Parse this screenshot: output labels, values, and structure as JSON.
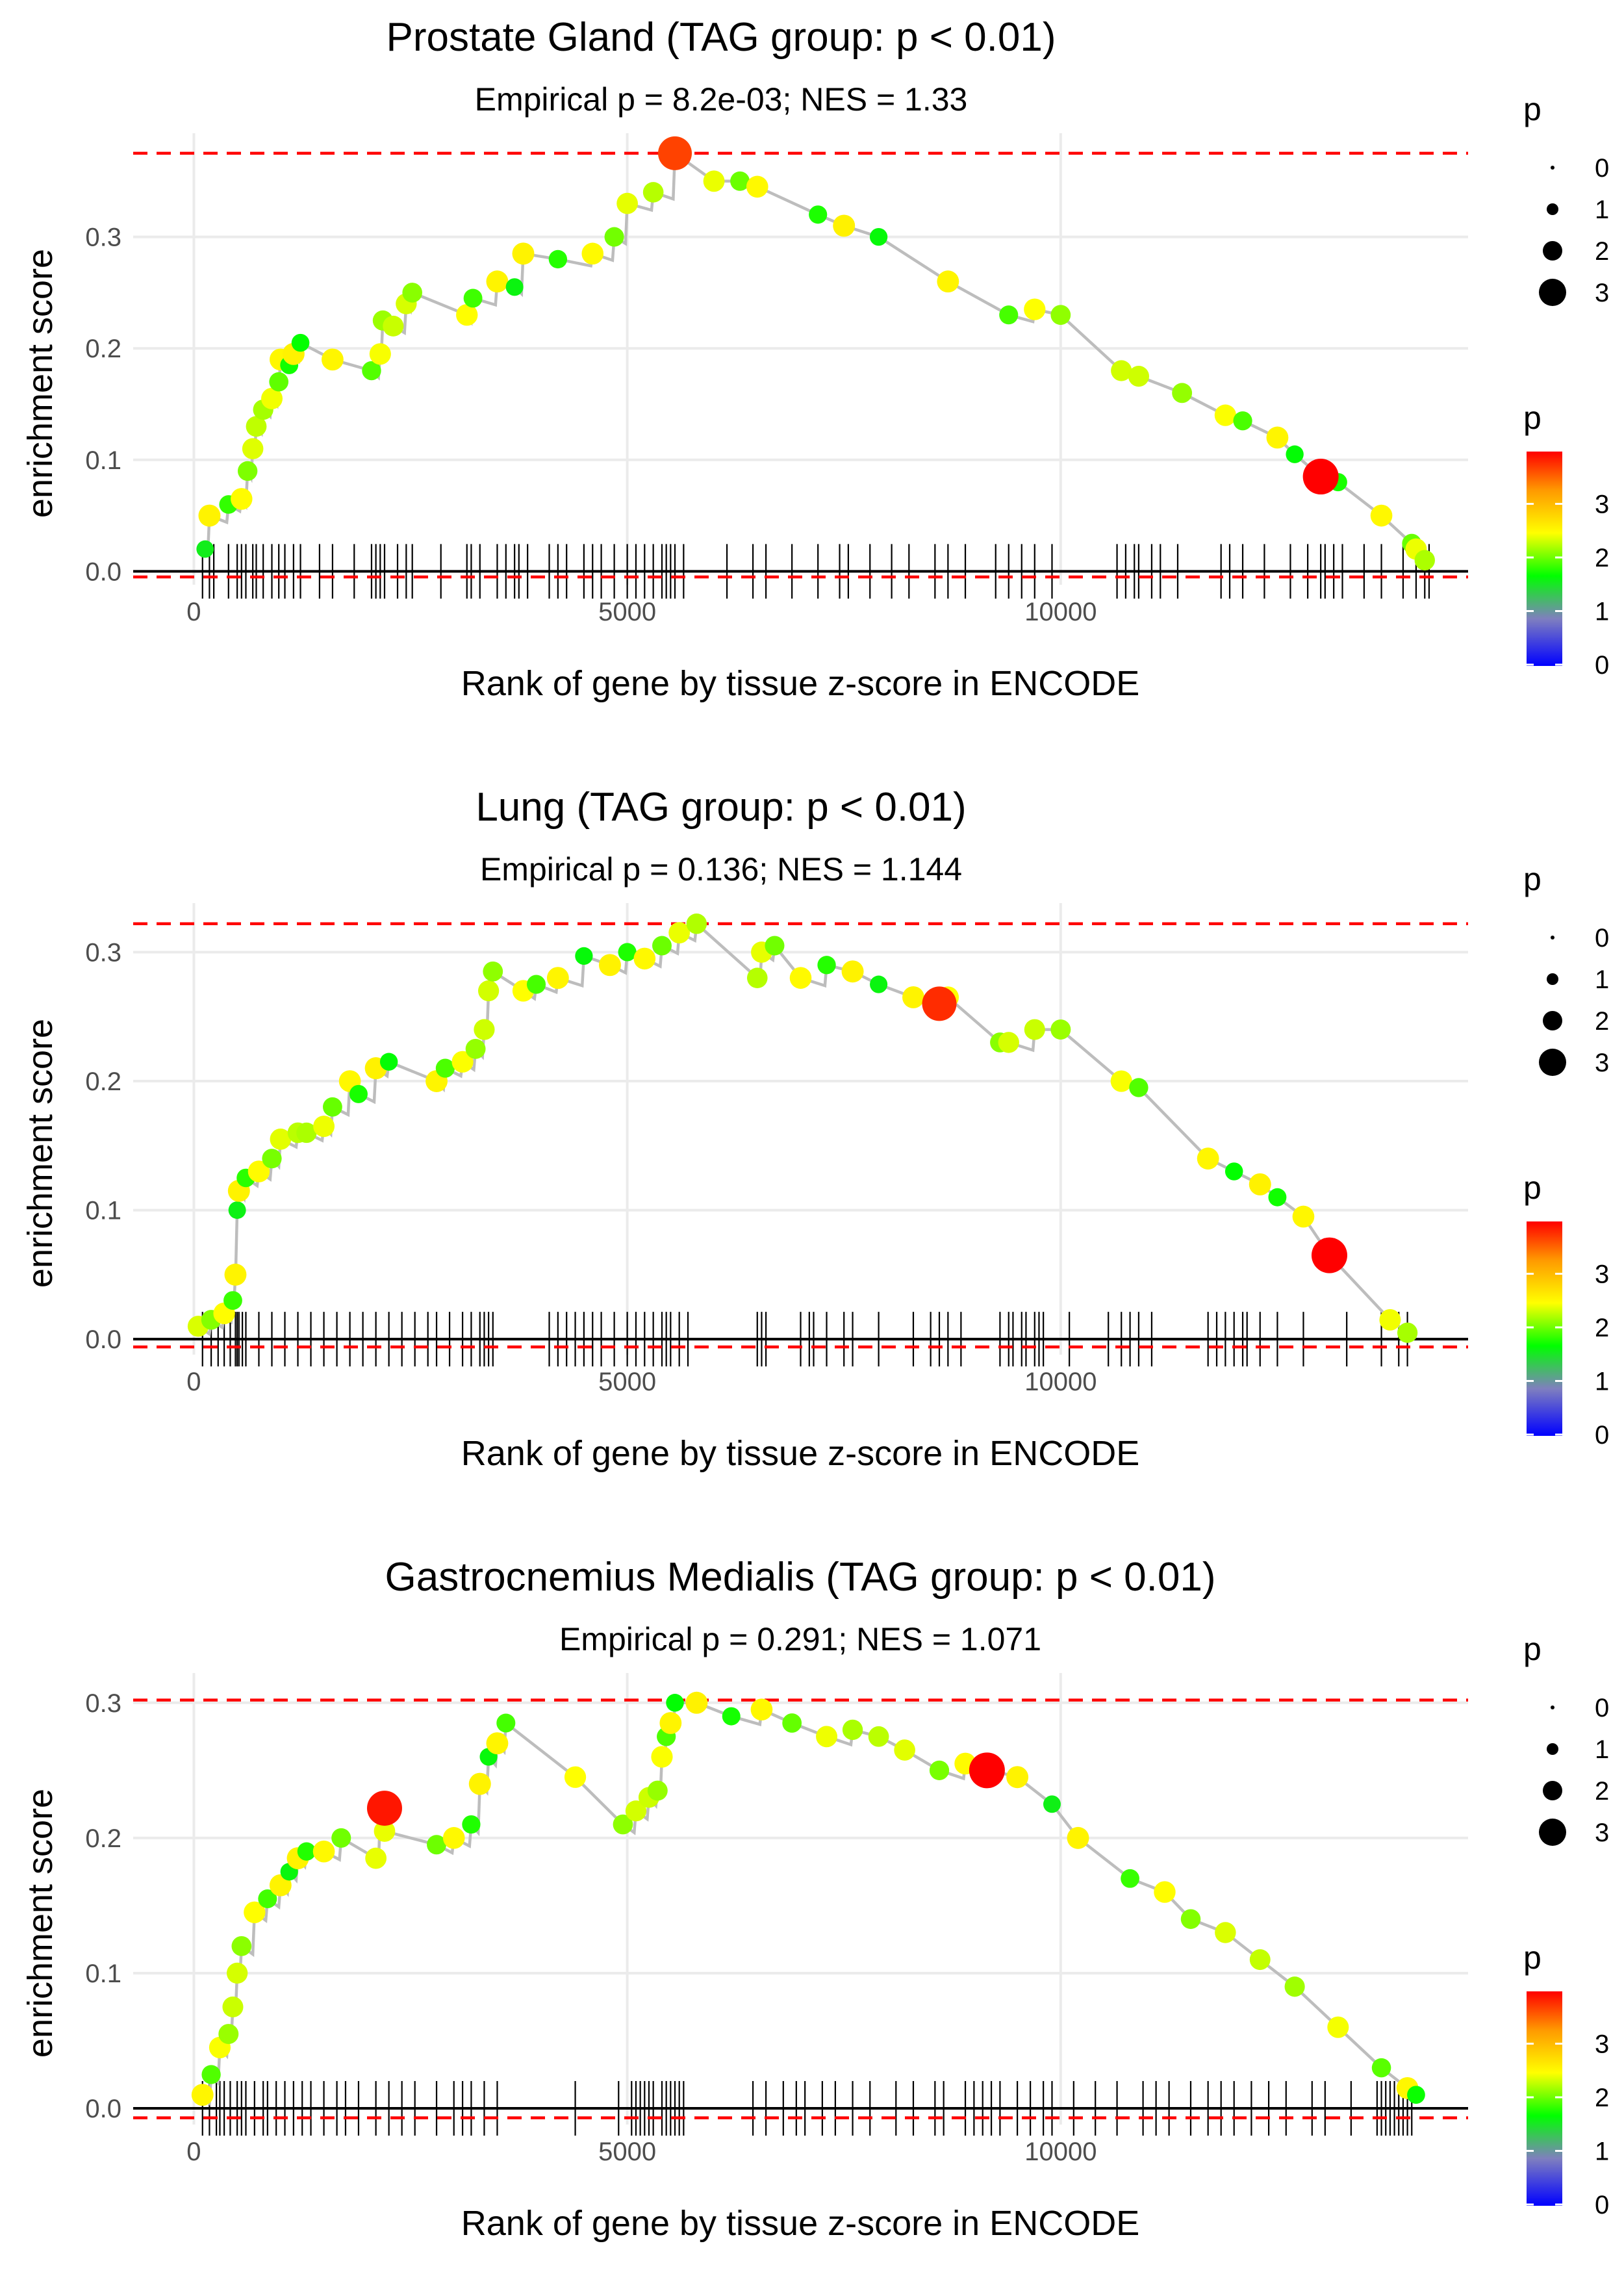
{
  "legend": {
    "size_title": "p",
    "size_levels": [
      "0",
      "1",
      "2",
      "3"
    ],
    "color_title": "p",
    "color_ticks": [
      "0",
      "1",
      "2",
      "3"
    ],
    "gradient_colors": [
      "#0000ff",
      "#7f7fbf",
      "#00ff00",
      "#ffff00",
      "#ff9900",
      "#ff0000"
    ]
  },
  "colors": {
    "line": "#bdbdbd",
    "dashed": "#ff0000",
    "baseline": "#000000",
    "grid": "#ebebeb",
    "tick_mark": "#000000"
  },
  "chart_data": [
    {
      "type": "line",
      "title": "Prostate Gland (TAG group: p < 0.01)",
      "subtitle": "Empirical p = 8.2e-03; NES = 1.33",
      "xlabel": "Rank of gene by tissue z-score in ENCODE",
      "ylabel": "enrichment score",
      "xlim": [
        -700,
        14700
      ],
      "ylim": [
        -0.012,
        0.393
      ],
      "x_ticks": [
        0,
        5000,
        10000
      ],
      "x_tick_labels": [
        "0",
        "5000",
        "10000"
      ],
      "y_ticks": [
        0,
        0.1,
        0.2,
        0.3
      ],
      "y_tick_labels": [
        "0.0",
        "0.1",
        "0.2",
        "0.3"
      ],
      "max_es": 0.375,
      "min_es": -0.005,
      "points": [
        [
          130,
          0.02
        ],
        [
          180,
          0.05
        ],
        [
          400,
          0.06
        ],
        [
          550,
          0.065
        ],
        [
          620,
          0.09
        ],
        [
          680,
          0.11
        ],
        [
          720,
          0.13
        ],
        [
          800,
          0.145
        ],
        [
          900,
          0.155
        ],
        [
          980,
          0.17
        ],
        [
          1000,
          0.19
        ],
        [
          1100,
          0.185
        ],
        [
          1150,
          0.195
        ],
        [
          1230,
          0.205
        ],
        [
          1600,
          0.19
        ],
        [
          2050,
          0.18
        ],
        [
          2150,
          0.195
        ],
        [
          2180,
          0.225
        ],
        [
          2300,
          0.22
        ],
        [
          2450,
          0.24
        ],
        [
          2520,
          0.25
        ],
        [
          3150,
          0.23
        ],
        [
          3220,
          0.245
        ],
        [
          3500,
          0.26
        ],
        [
          3700,
          0.255
        ],
        [
          3800,
          0.285
        ],
        [
          4200,
          0.28
        ],
        [
          4600,
          0.285
        ],
        [
          4850,
          0.3
        ],
        [
          5000,
          0.33
        ],
        [
          5300,
          0.34
        ],
        [
          5550,
          0.375
        ],
        [
          6000,
          0.35
        ],
        [
          6300,
          0.35
        ],
        [
          6500,
          0.345
        ],
        [
          7200,
          0.32
        ],
        [
          7500,
          0.31
        ],
        [
          7900,
          0.3
        ],
        [
          8700,
          0.26
        ],
        [
          9400,
          0.23
        ],
        [
          9700,
          0.235
        ],
        [
          10000,
          0.23
        ],
        [
          10700,
          0.18
        ],
        [
          10900,
          0.175
        ],
        [
          11400,
          0.16
        ],
        [
          11900,
          0.14
        ],
        [
          12100,
          0.135
        ],
        [
          12500,
          0.12
        ],
        [
          12700,
          0.105
        ],
        [
          13000,
          0.085
        ],
        [
          13200,
          0.08
        ],
        [
          13700,
          0.05
        ],
        [
          14050,
          0.025
        ],
        [
          14100,
          0.02
        ],
        [
          14200,
          0.01
        ]
      ],
      "highlights": [
        {
          "x": 5550,
          "y": 0.375,
          "p": 3.6
        },
        {
          "x": 13000,
          "y": 0.085,
          "p": 3.9
        }
      ],
      "gene_ranks": [
        100,
        180,
        230,
        400,
        500,
        550,
        600,
        680,
        720,
        800,
        900,
        980,
        1050,
        1150,
        1230,
        1450,
        1600,
        1850,
        2050,
        2100,
        2150,
        2200,
        2350,
        2450,
        2520,
        2850,
        3150,
        3200,
        3300,
        3500,
        3600,
        3700,
        3750,
        3850,
        4100,
        4200,
        4300,
        4500,
        4600,
        4700,
        4850,
        5000,
        5100,
        5200,
        5300,
        5400,
        5450,
        5500,
        5550,
        5650,
        6150,
        6450,
        6600,
        6900,
        7200,
        7450,
        7550,
        7800,
        8050,
        8250,
        8550,
        8700,
        8900,
        9250,
        9400,
        9550,
        9700,
        9900,
        10650,
        10750,
        10850,
        10900,
        11050,
        11150,
        11350,
        11850,
        11950,
        12100,
        12350,
        12650,
        12850,
        13000,
        13050,
        13150,
        13250,
        13500,
        13700,
        13950,
        14100,
        14200,
        14250
      ]
    },
    {
      "type": "line",
      "title": "Lung (TAG group: p < 0.01)",
      "subtitle": "Empirical p = 0.136; NES = 1.144",
      "xlabel": "Rank of gene by tissue z-score in ENCODE",
      "ylabel": "enrichment score",
      "xlim": [
        -700,
        14700
      ],
      "ylim": [
        -0.012,
        0.338
      ],
      "x_ticks": [
        0,
        5000,
        10000
      ],
      "x_tick_labels": [
        "0",
        "5000",
        "10000"
      ],
      "y_ticks": [
        0,
        0.1,
        0.2,
        0.3
      ],
      "y_tick_labels": [
        "0.0",
        "0.1",
        "0.2",
        "0.3"
      ],
      "max_es": 0.322,
      "min_es": -0.006,
      "points": [
        [
          50,
          0.01
        ],
        [
          200,
          0.015
        ],
        [
          350,
          0.02
        ],
        [
          450,
          0.03
        ],
        [
          480,
          0.05
        ],
        [
          500,
          0.1
        ],
        [
          520,
          0.115
        ],
        [
          600,
          0.125
        ],
        [
          750,
          0.13
        ],
        [
          900,
          0.14
        ],
        [
          1000,
          0.155
        ],
        [
          1200,
          0.16
        ],
        [
          1300,
          0.16
        ],
        [
          1500,
          0.165
        ],
        [
          1600,
          0.18
        ],
        [
          1800,
          0.2
        ],
        [
          1900,
          0.19
        ],
        [
          2100,
          0.21
        ],
        [
          2250,
          0.215
        ],
        [
          2800,
          0.2
        ],
        [
          2900,
          0.21
        ],
        [
          3100,
          0.215
        ],
        [
          3250,
          0.225
        ],
        [
          3350,
          0.24
        ],
        [
          3400,
          0.27
        ],
        [
          3450,
          0.285
        ],
        [
          3800,
          0.27
        ],
        [
          3950,
          0.275
        ],
        [
          4200,
          0.28
        ],
        [
          4500,
          0.297
        ],
        [
          4800,
          0.29
        ],
        [
          5000,
          0.3
        ],
        [
          5200,
          0.295
        ],
        [
          5400,
          0.305
        ],
        [
          5600,
          0.315
        ],
        [
          5800,
          0.322
        ],
        [
          6500,
          0.28
        ],
        [
          6550,
          0.3
        ],
        [
          6700,
          0.305
        ],
        [
          7000,
          0.28
        ],
        [
          7300,
          0.29
        ],
        [
          7600,
          0.285
        ],
        [
          7900,
          0.275
        ],
        [
          8300,
          0.265
        ],
        [
          8600,
          0.26
        ],
        [
          8700,
          0.265
        ],
        [
          9300,
          0.23
        ],
        [
          9400,
          0.23
        ],
        [
          9700,
          0.24
        ],
        [
          10000,
          0.24
        ],
        [
          10700,
          0.2
        ],
        [
          10900,
          0.195
        ],
        [
          11700,
          0.14
        ],
        [
          12000,
          0.13
        ],
        [
          12300,
          0.12
        ],
        [
          12500,
          0.11
        ],
        [
          12800,
          0.095
        ],
        [
          13100,
          0.065
        ],
        [
          13800,
          0.015
        ],
        [
          14000,
          0.005
        ]
      ],
      "highlights": [
        {
          "x": 13100,
          "y": 0.065,
          "p": 3.9
        },
        {
          "x": 8600,
          "y": 0.26,
          "p": 3.7
        }
      ],
      "gene_ranks": [
        100,
        200,
        280,
        350,
        420,
        480,
        500,
        520,
        560,
        600,
        750,
        900,
        1050,
        1200,
        1350,
        1500,
        1650,
        1800,
        1950,
        2100,
        2250,
        2400,
        2550,
        2700,
        2800,
        2950,
        3100,
        3200,
        3300,
        3350,
        3400,
        3450,
        4100,
        4200,
        4300,
        4400,
        4500,
        4600,
        4700,
        4850,
        5000,
        5100,
        5200,
        5300,
        5400,
        5450,
        5500,
        5600,
        5700,
        6500,
        6550,
        6600,
        7000,
        7100,
        7150,
        7300,
        7500,
        7600,
        7900,
        8300,
        8500,
        8600,
        8700,
        8850,
        9300,
        9400,
        9450,
        9550,
        9600,
        9700,
        9750,
        9800,
        10100,
        10550,
        10700,
        10800,
        10900,
        11050,
        11700,
        11800,
        11900,
        12000,
        12100,
        12150,
        12300,
        12500,
        12800,
        13300,
        13700,
        13900,
        14000
      ]
    },
    {
      "type": "line",
      "title": "Gastrocnemius Medialis (TAG group: p < 0.01)",
      "subtitle": "Empirical p = 0.291; NES = 1.071",
      "xlabel": "Rank of gene by tissue z-score in ENCODE",
      "ylabel": "enrichment score",
      "xlim": [
        -700,
        14700
      ],
      "ylim": [
        -0.012,
        0.322
      ],
      "x_ticks": [
        0,
        5000,
        10000
      ],
      "x_tick_labels": [
        "0",
        "5000",
        "10000"
      ],
      "y_ticks": [
        0,
        0.1,
        0.2,
        0.3
      ],
      "y_tick_labels": [
        "0.0",
        "0.1",
        "0.2",
        "0.3"
      ],
      "max_es": 0.302,
      "min_es": -0.007,
      "points": [
        [
          100,
          0.01
        ],
        [
          200,
          0.025
        ],
        [
          300,
          0.045
        ],
        [
          400,
          0.055
        ],
        [
          450,
          0.075
        ],
        [
          500,
          0.1
        ],
        [
          550,
          0.12
        ],
        [
          700,
          0.145
        ],
        [
          850,
          0.155
        ],
        [
          1000,
          0.165
        ],
        [
          1100,
          0.175
        ],
        [
          1200,
          0.185
        ],
        [
          1300,
          0.19
        ],
        [
          1500,
          0.19
        ],
        [
          1700,
          0.2
        ],
        [
          2100,
          0.185
        ],
        [
          2150,
          0.22
        ],
        [
          2200,
          0.225
        ],
        [
          2200,
          0.205
        ],
        [
          2800,
          0.195
        ],
        [
          3000,
          0.2
        ],
        [
          3200,
          0.21
        ],
        [
          3300,
          0.24
        ],
        [
          3400,
          0.26
        ],
        [
          3500,
          0.27
        ],
        [
          3600,
          0.285
        ],
        [
          4400,
          0.245
        ],
        [
          4950,
          0.21
        ],
        [
          5100,
          0.22
        ],
        [
          5250,
          0.23
        ],
        [
          5350,
          0.235
        ],
        [
          5400,
          0.26
        ],
        [
          5450,
          0.275
        ],
        [
          5500,
          0.285
        ],
        [
          5550,
          0.3
        ],
        [
          5800,
          0.3
        ],
        [
          6200,
          0.29
        ],
        [
          6550,
          0.295
        ],
        [
          6900,
          0.285
        ],
        [
          7300,
          0.275
        ],
        [
          7600,
          0.28
        ],
        [
          7900,
          0.275
        ],
        [
          8200,
          0.265
        ],
        [
          8600,
          0.25
        ],
        [
          8900,
          0.255
        ],
        [
          9200,
          0.25
        ],
        [
          9500,
          0.245
        ],
        [
          9900,
          0.225
        ],
        [
          10200,
          0.2
        ],
        [
          10800,
          0.17
        ],
        [
          11200,
          0.16
        ],
        [
          11500,
          0.14
        ],
        [
          11900,
          0.13
        ],
        [
          12300,
          0.11
        ],
        [
          12700,
          0.09
        ],
        [
          13200,
          0.06
        ],
        [
          13700,
          0.03
        ],
        [
          14000,
          0.015
        ],
        [
          14100,
          0.01
        ]
      ],
      "highlights": [
        {
          "x": 2200,
          "y": 0.222,
          "p": 3.8
        },
        {
          "x": 9150,
          "y": 0.25,
          "p": 3.9
        }
      ],
      "gene_ranks": [
        100,
        180,
        260,
        300,
        350,
        420,
        500,
        550,
        600,
        700,
        800,
        850,
        950,
        1050,
        1150,
        1250,
        1350,
        1500,
        1650,
        1750,
        1900,
        2100,
        2250,
        2400,
        2550,
        2800,
        3000,
        3100,
        3200,
        3350,
        3500,
        4400,
        4900,
        5050,
        5100,
        5150,
        5200,
        5250,
        5300,
        5400,
        5450,
        5500,
        5550,
        5600,
        5650,
        6450,
        6600,
        6800,
        6950,
        7050,
        7250,
        7400,
        7600,
        7800,
        8100,
        8300,
        8550,
        8650,
        8900,
        9000,
        9100,
        9200,
        9300,
        9500,
        9650,
        9800,
        9900,
        10150,
        10400,
        10650,
        10950,
        11100,
        11250,
        11500,
        11700,
        11850,
        12000,
        12200,
        12400,
        12600,
        12900,
        13050,
        13350,
        13650,
        13700,
        13750,
        13800,
        13850,
        13900,
        13950,
        14000,
        14050
      ]
    }
  ]
}
